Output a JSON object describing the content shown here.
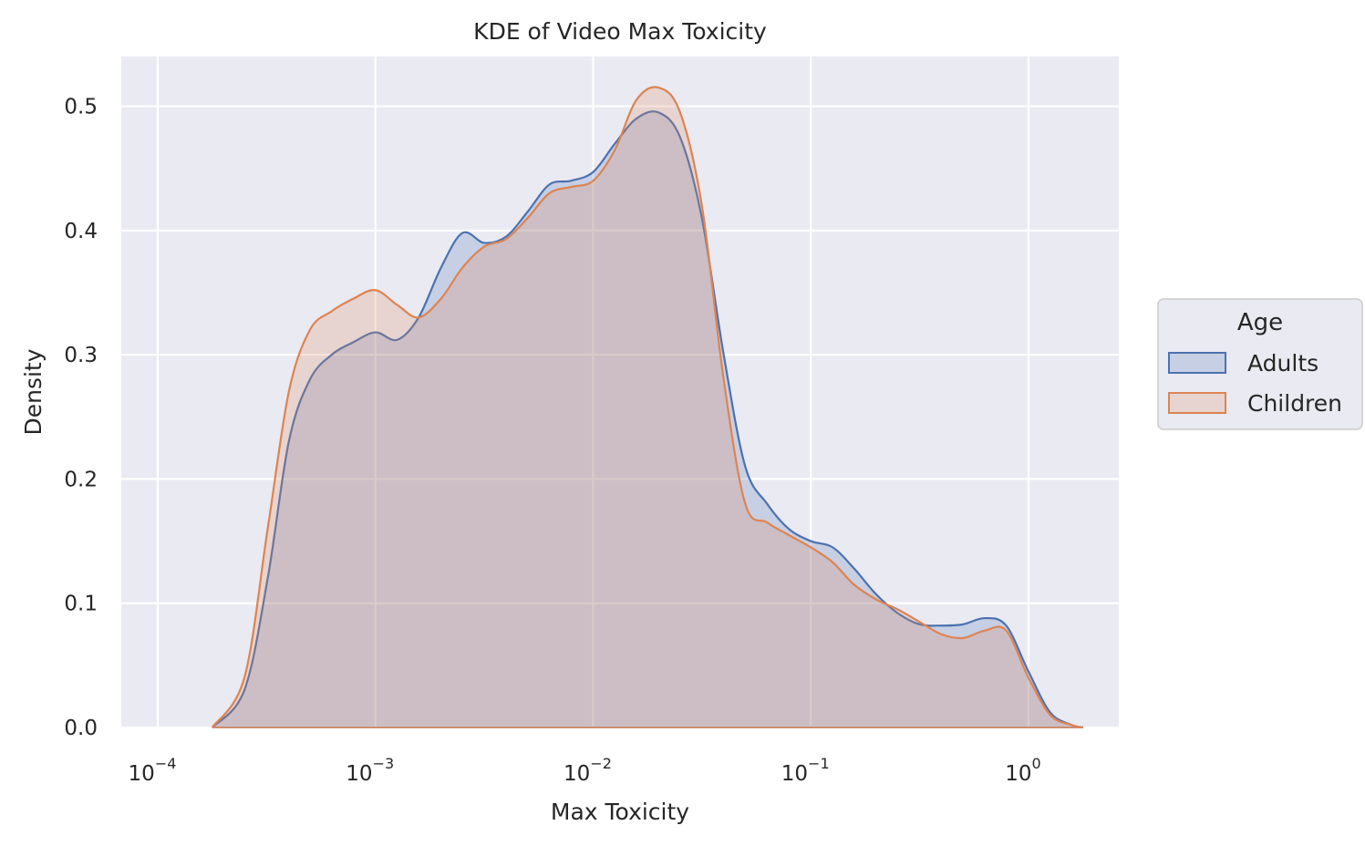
{
  "chart_data": {
    "type": "area",
    "title": "KDE of Video Max Toxicity",
    "xlabel": "Max Toxicity",
    "ylabel": "Density",
    "xscale": "log",
    "xlim": [
      6.8e-05,
      2.6
    ],
    "ylim": [
      0,
      0.54
    ],
    "grid": true,
    "background_color": "#eaeaf2",
    "x_ticks": [
      {
        "value": 0.0001,
        "base": "10",
        "exp": "−4"
      },
      {
        "value": 0.001,
        "base": "10",
        "exp": "−3"
      },
      {
        "value": 0.01,
        "base": "10",
        "exp": "−2"
      },
      {
        "value": 0.1,
        "base": "10",
        "exp": "−1"
      },
      {
        "value": 1,
        "base": "10",
        "exp": "0"
      }
    ],
    "y_ticks": [
      {
        "value": 0.0,
        "label": "0.0"
      },
      {
        "value": 0.1,
        "label": "0.1"
      },
      {
        "value": 0.2,
        "label": "0.2"
      },
      {
        "value": 0.3,
        "label": "0.3"
      },
      {
        "value": 0.4,
        "label": "0.4"
      },
      {
        "value": 0.5,
        "label": "0.5"
      }
    ],
    "legend": {
      "title": "Age",
      "position": "right"
    },
    "series": [
      {
        "name": "Adults",
        "color": "#4c72b0",
        "x": [
          0.000178,
          0.00025,
          0.00032,
          0.0004,
          0.0005,
          0.00063,
          0.00079,
          0.001,
          0.00126,
          0.00158,
          0.002,
          0.00251,
          0.00316,
          0.00398,
          0.005,
          0.0063,
          0.0079,
          0.01,
          0.0126,
          0.0158,
          0.02,
          0.0251,
          0.0316,
          0.0398,
          0.05,
          0.063,
          0.079,
          0.1,
          0.126,
          0.158,
          0.2,
          0.251,
          0.316,
          0.398,
          0.5,
          0.63,
          0.79,
          1.0,
          1.26,
          1.58,
          1.78
        ],
        "y": [
          0.0,
          0.03,
          0.12,
          0.23,
          0.28,
          0.3,
          0.31,
          0.318,
          0.312,
          0.33,
          0.37,
          0.398,
          0.39,
          0.395,
          0.415,
          0.437,
          0.44,
          0.447,
          0.47,
          0.49,
          0.495,
          0.475,
          0.41,
          0.3,
          0.21,
          0.18,
          0.16,
          0.15,
          0.145,
          0.128,
          0.107,
          0.092,
          0.083,
          0.082,
          0.083,
          0.088,
          0.082,
          0.045,
          0.012,
          0.002,
          0.0
        ]
      },
      {
        "name": "Children",
        "color": "#dd8452",
        "x": [
          0.000178,
          0.00025,
          0.00032,
          0.0004,
          0.0005,
          0.00063,
          0.00079,
          0.001,
          0.00126,
          0.00158,
          0.002,
          0.00251,
          0.00316,
          0.00398,
          0.005,
          0.0063,
          0.0079,
          0.01,
          0.0126,
          0.0158,
          0.02,
          0.0251,
          0.0316,
          0.0398,
          0.05,
          0.063,
          0.079,
          0.1,
          0.126,
          0.158,
          0.2,
          0.251,
          0.316,
          0.398,
          0.5,
          0.63,
          0.79,
          1.0,
          1.26,
          1.58,
          1.78
        ],
        "y": [
          0.0,
          0.04,
          0.16,
          0.27,
          0.32,
          0.335,
          0.345,
          0.352,
          0.34,
          0.33,
          0.345,
          0.37,
          0.387,
          0.393,
          0.41,
          0.43,
          0.435,
          0.44,
          0.465,
          0.505,
          0.515,
          0.495,
          0.42,
          0.28,
          0.18,
          0.165,
          0.155,
          0.145,
          0.133,
          0.115,
          0.103,
          0.095,
          0.085,
          0.075,
          0.072,
          0.078,
          0.078,
          0.04,
          0.01,
          0.002,
          0.0
        ]
      }
    ]
  }
}
